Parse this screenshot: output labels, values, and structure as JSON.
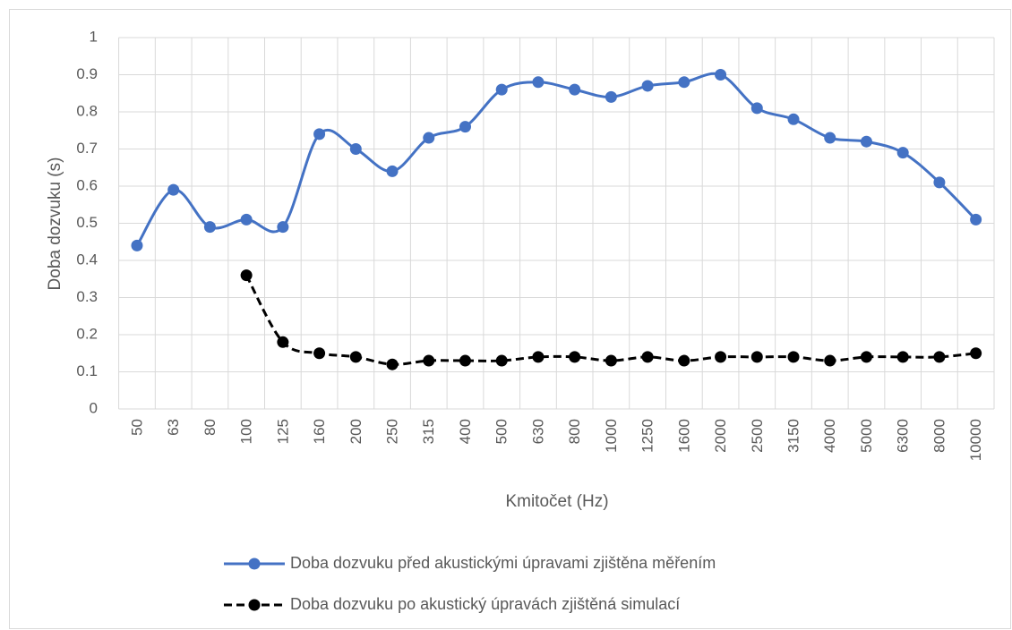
{
  "chart_data": {
    "type": "line",
    "x_label": "Kmitočet (Hz)",
    "y_label": "Doba dozvuku (s)",
    "categories": [
      "50",
      "63",
      "80",
      "100",
      "125",
      "160",
      "200",
      "250",
      "315",
      "400",
      "500",
      "630",
      "800",
      "1000",
      "1250",
      "1600",
      "2000",
      "2500",
      "3150",
      "4000",
      "5000",
      "6300",
      "8000",
      "10000"
    ],
    "series": [
      {
        "name": "Doba dozvuku před akustickými úpravami zjištěna měřením",
        "color": "#4472c4",
        "dash": false,
        "values": [
          0.44,
          0.59,
          0.49,
          0.51,
          0.49,
          0.74,
          0.7,
          0.64,
          0.73,
          0.76,
          0.86,
          0.88,
          0.86,
          0.84,
          0.87,
          0.88,
          0.9,
          0.81,
          0.78,
          0.73,
          0.72,
          0.69,
          0.61,
          0.51
        ]
      },
      {
        "name": "Doba dozvuku po akustický úpravách zjištěná simulací",
        "color": "#000000",
        "dash": true,
        "values": [
          null,
          null,
          null,
          0.36,
          0.18,
          0.15,
          0.14,
          0.12,
          0.13,
          0.13,
          0.13,
          0.14,
          0.14,
          0.13,
          0.14,
          0.13,
          0.14,
          0.14,
          0.14,
          0.13,
          0.14,
          0.14,
          0.14,
          0.15
        ]
      }
    ],
    "ylim": [
      0,
      1
    ],
    "yticks": [
      0,
      0.1,
      0.2,
      0.3,
      0.4,
      0.5,
      0.6,
      0.7,
      0.8,
      0.9,
      1
    ],
    "grid": true,
    "legend": "bottom"
  }
}
